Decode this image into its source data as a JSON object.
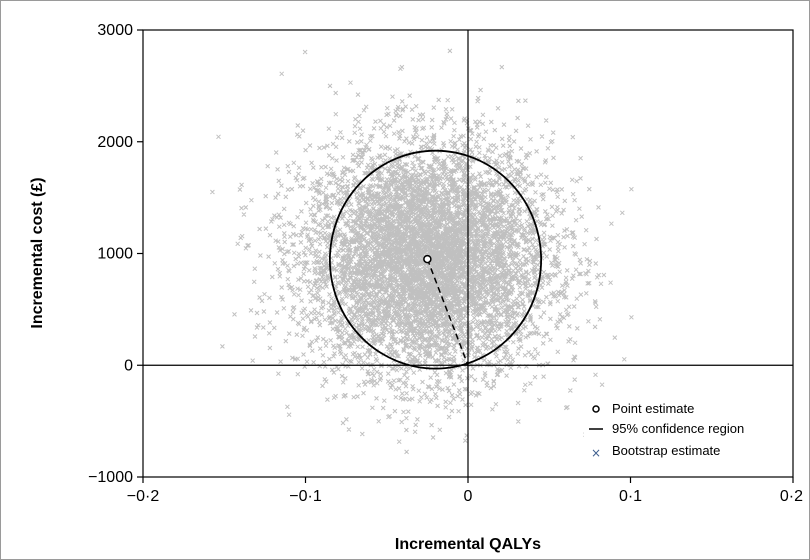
{
  "chart_data": {
    "type": "scatter",
    "title": "",
    "xlabel": "Incremental QALYs",
    "ylabel": "Incremental cost (£)",
    "xlim": [
      -0.2,
      0.2
    ],
    "ylim": [
      -1000,
      3000
    ],
    "x_ticks": [
      -0.2,
      -0.1,
      0,
      0.1,
      0.2
    ],
    "x_tick_labels": [
      "−0·2",
      "−0·1",
      "0",
      "0·1",
      "0·2"
    ],
    "y_ticks": [
      -1000,
      0,
      1000,
      2000,
      3000
    ],
    "y_tick_labels": [
      "−1000",
      "0",
      "1000",
      "2000",
      "3000"
    ],
    "grid": false,
    "legend_position": "bottom-right",
    "colors": {
      "bootstrap": "#c0c0c0",
      "legend_bootstrap_marker": "#3f5f8f",
      "ellipse": "#000000",
      "axes": "#000000"
    },
    "series": [
      {
        "name": "Point estimate",
        "marker": "open-circle",
        "points": [
          {
            "x": -0.025,
            "y": 950
          }
        ]
      },
      {
        "name": "95% confidence region",
        "marker": "line",
        "ellipse": {
          "center": [
            -0.02,
            945
          ],
          "half_width_qaly": 0.065,
          "half_height_cost": 975
        }
      },
      {
        "name": "Bootstrap estimate",
        "marker": "x",
        "distribution": {
          "mean": [
            -0.025,
            950
          ],
          "sd": [
            0.038,
            520
          ],
          "x_range": [
            -0.165,
            0.11
          ],
          "y_range": [
            -780,
            3000
          ]
        }
      }
    ],
    "annotations": [
      {
        "type": "dashed-line",
        "from": [
          -0.025,
          950
        ],
        "to": [
          0,
          0
        ]
      }
    ],
    "legend": {
      "items": [
        {
          "symbol": "o",
          "label": "Point estimate"
        },
        {
          "symbol": "—",
          "label": "95% confidence region"
        },
        {
          "symbol": "×",
          "label": "Bootstrap estimate"
        }
      ]
    }
  }
}
